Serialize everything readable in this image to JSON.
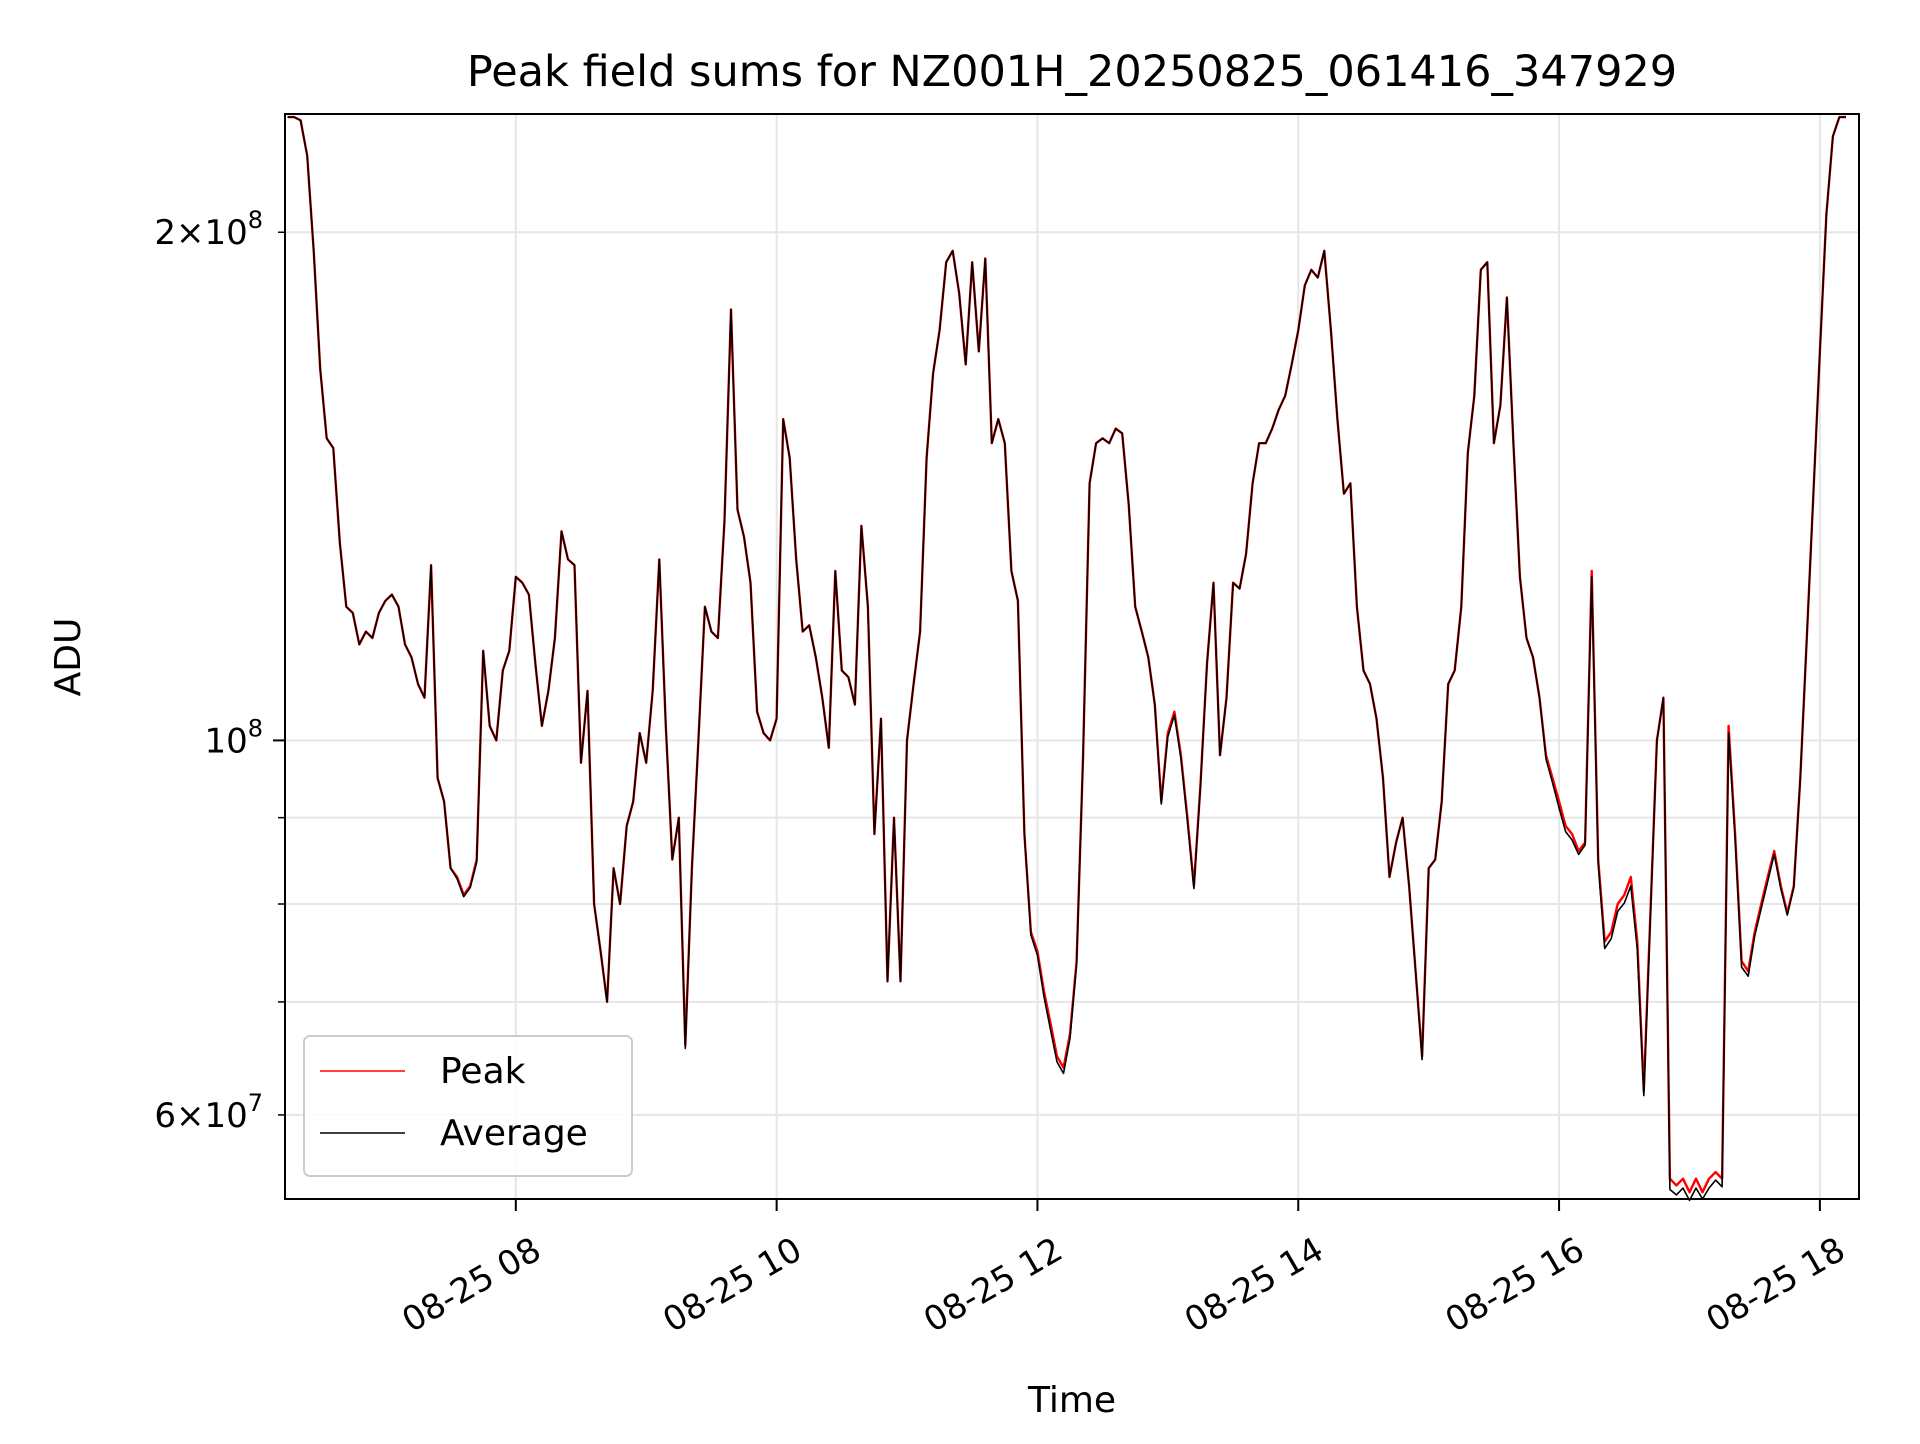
{
  "chart_data": {
    "type": "line",
    "title": "Peak field sums for NZ001H_20250825_061416_347929",
    "xlabel": "Time",
    "ylabel": "ADU",
    "x_unit": "hour of 2025-08-25",
    "xlim": [
      6.23,
      18.3
    ],
    "ylim": [
      53500000,
      235000000
    ],
    "yscale": "log",
    "grid": true,
    "legend_position": "lower-left",
    "x_tick_labels": [
      {
        "value": 8,
        "label": "08-25 08"
      },
      {
        "value": 10,
        "label": "08-25 10"
      },
      {
        "value": 12,
        "label": "08-25 12"
      },
      {
        "value": 14,
        "label": "08-25 14"
      },
      {
        "value": 16,
        "label": "08-25 16"
      },
      {
        "value": 18,
        "label": "08-25 18"
      }
    ],
    "y_major_ticks": [
      {
        "value": 100000000,
        "base": "10",
        "exp": "8"
      }
    ],
    "y_minor_ticks": [
      {
        "value": 60000000,
        "mant": "6",
        "exp": "7"
      },
      {
        "value": 70000000,
        "mant": "",
        "exp": ""
      },
      {
        "value": 80000000,
        "mant": "",
        "exp": ""
      },
      {
        "value": 90000000,
        "mant": "",
        "exp": ""
      },
      {
        "value": 200000000,
        "mant": "2",
        "exp": "8"
      }
    ],
    "x": [
      6.25,
      6.3,
      6.35,
      6.4,
      6.45,
      6.5,
      6.55,
      6.6,
      6.65,
      6.7,
      6.75,
      6.8,
      6.85,
      6.9,
      6.95,
      7.0,
      7.05,
      7.1,
      7.15,
      7.2,
      7.25,
      7.3,
      7.35,
      7.4,
      7.45,
      7.5,
      7.55,
      7.6,
      7.65,
      7.7,
      7.75,
      7.8,
      7.85,
      7.9,
      7.95,
      8.0,
      8.05,
      8.1,
      8.15,
      8.2,
      8.25,
      8.3,
      8.35,
      8.4,
      8.45,
      8.5,
      8.55,
      8.6,
      8.65,
      8.7,
      8.75,
      8.8,
      8.85,
      8.9,
      8.95,
      9.0,
      9.05,
      9.1,
      9.15,
      9.2,
      9.25,
      9.3,
      9.35,
      9.4,
      9.45,
      9.5,
      9.55,
      9.6,
      9.65,
      9.7,
      9.75,
      9.8,
      9.85,
      9.9,
      9.95,
      10.0,
      10.05,
      10.1,
      10.15,
      10.2,
      10.25,
      10.3,
      10.35,
      10.4,
      10.45,
      10.5,
      10.55,
      10.6,
      10.65,
      10.7,
      10.75,
      10.8,
      10.85,
      10.9,
      10.95,
      11.0,
      11.05,
      11.1,
      11.15,
      11.2,
      11.25,
      11.3,
      11.35,
      11.4,
      11.45,
      11.5,
      11.55,
      11.6,
      11.65,
      11.7,
      11.75,
      11.8,
      11.85,
      11.9,
      11.95,
      12.0,
      12.05,
      12.1,
      12.15,
      12.2,
      12.25,
      12.3,
      12.35,
      12.4,
      12.45,
      12.5,
      12.55,
      12.6,
      12.65,
      12.7,
      12.75,
      12.8,
      12.85,
      12.9,
      12.95,
      13.0,
      13.05,
      13.1,
      13.15,
      13.2,
      13.25,
      13.3,
      13.35,
      13.4,
      13.45,
      13.5,
      13.55,
      13.6,
      13.65,
      13.7,
      13.75,
      13.8,
      13.85,
      13.9,
      13.95,
      14.0,
      14.05,
      14.1,
      14.15,
      14.2,
      14.25,
      14.3,
      14.35,
      14.4,
      14.45,
      14.5,
      14.55,
      14.6,
      14.65,
      14.7,
      14.75,
      14.8,
      14.85,
      14.9,
      14.95,
      15.0,
      15.05,
      15.1,
      15.15,
      15.2,
      15.25,
      15.3,
      15.35,
      15.4,
      15.45,
      15.5,
      15.55,
      15.6,
      15.65,
      15.7,
      15.75,
      15.8,
      15.85,
      15.9,
      15.95,
      16.0,
      16.05,
      16.1,
      16.15,
      16.2,
      16.25,
      16.3,
      16.35,
      16.4,
      16.45,
      16.5,
      16.55,
      16.6,
      16.65,
      16.7,
      16.75,
      16.8,
      16.85,
      16.9,
      16.95,
      17.0,
      17.05,
      17.1,
      17.15,
      17.2,
      17.25,
      17.3,
      17.35,
      17.4,
      17.45,
      17.5,
      17.55,
      17.6,
      17.65,
      17.7,
      17.75,
      17.8,
      17.85,
      17.9,
      17.95,
      18.0,
      18.05,
      18.1,
      18.15,
      18.2
    ],
    "series": [
      {
        "name": "Peak",
        "color": "#ff0000",
        "values": [
          234000000,
          234000000,
          233000000,
          222000000,
          195000000,
          166000000,
          151000000,
          149000000,
          131000000,
          120000000,
          119000000,
          114000000,
          116000000,
          115000000,
          119000000,
          121000000,
          122000000,
          120000000,
          114000000,
          112000000,
          108000000,
          106000000,
          127000000,
          95000000,
          92000000,
          84000000,
          83000000,
          81000000,
          82000000,
          85000000,
          113000000,
          102000000,
          100000000,
          110000000,
          113000000,
          125000000,
          124000000,
          122000000,
          111000000,
          102000000,
          107000000,
          115000000,
          133000000,
          128000000,
          127000000,
          97000000,
          107000000,
          80000000,
          75000000,
          70000000,
          84000000,
          80000000,
          89000000,
          92000000,
          101000000,
          97000000,
          107000000,
          128000000,
          102000000,
          85000000,
          90000000,
          66000000,
          84000000,
          100000000,
          120000000,
          116000000,
          115000000,
          135000000,
          180000000,
          137000000,
          132000000,
          124000000,
          104000000,
          101000000,
          100000000,
          103000000,
          155000000,
          147000000,
          128000000,
          116000000,
          117000000,
          112000000,
          106000000,
          99000000,
          126000000,
          110000000,
          109000000,
          105000000,
          134000000,
          120000000,
          88000000,
          103000000,
          72000000,
          90000000,
          72000000,
          100000000,
          108000000,
          116000000,
          147000000,
          165000000,
          175000000,
          192000000,
          195000000,
          184000000,
          167000000,
          192000000,
          170000000,
          193000000,
          150000000,
          155000000,
          150000000,
          126000000,
          121000000,
          88000000,
          77000000,
          75000000,
          71000000,
          68000000,
          65000000,
          64000000,
          67000000,
          74000000,
          98000000,
          142000000,
          150000000,
          151000000,
          150000000,
          153000000,
          152000000,
          138000000,
          120000000,
          116000000,
          112000000,
          105000000,
          92000000,
          101000000,
          104000000,
          98000000,
          90000000,
          82000000,
          94000000,
          111000000,
          124000000,
          98000000,
          106000000,
          124000000,
          123000000,
          129000000,
          142000000,
          150000000,
          150000000,
          153000000,
          157000000,
          160000000,
          167000000,
          175000000,
          186000000,
          190000000,
          188000000,
          195000000,
          175000000,
          155000000,
          140000000,
          142000000,
          120000000,
          110000000,
          108000000,
          103000000,
          95000000,
          83000000,
          87000000,
          90000000,
          82000000,
          73000000,
          65000000,
          84000000,
          85000000,
          92000000,
          108000000,
          110000000,
          120000000,
          148000000,
          160000000,
          190000000,
          192000000,
          150000000,
          158000000,
          183000000,
          150000000,
          125000000,
          115000000,
          112000000,
          106000000,
          98000000,
          95000000,
          92000000,
          89000000,
          88000000,
          86000000,
          87000000,
          126000000,
          85000000,
          76000000,
          77000000,
          80000000,
          81000000,
          83000000,
          76000000,
          62000000,
          79000000,
          100000000,
          106000000,
          55000000,
          54500000,
          55000000,
          54000000,
          55000000,
          54000000,
          55000000,
          55500000,
          55000000,
          102000000,
          88000000,
          74000000,
          73000000,
          77000000,
          80000000,
          83000000,
          86000000,
          82000000,
          79000000,
          82000000,
          95000000,
          115000000,
          140000000,
          170000000,
          205000000,
          228000000,
          234000000,
          234000000
        ]
      },
      {
        "name": "Average",
        "color": "#000000",
        "values": [
          234000000,
          234000000,
          233000000,
          222000000,
          195000000,
          166000000,
          151000000,
          149000000,
          131000000,
          120000000,
          119000000,
          114000000,
          116000000,
          115000000,
          119000000,
          121000000,
          122000000,
          120000000,
          114000000,
          112000000,
          108000000,
          106000000,
          127000000,
          95000000,
          92000000,
          84000000,
          82800000,
          80800000,
          81800000,
          84700000,
          113000000,
          102000000,
          100000000,
          110000000,
          113000000,
          125000000,
          124000000,
          122000000,
          111000000,
          102000000,
          107000000,
          115000000,
          133000000,
          128000000,
          127000000,
          97000000,
          107000000,
          80000000,
          75000000,
          70000000,
          84000000,
          80000000,
          89000000,
          92000000,
          101000000,
          97000000,
          107000000,
          128000000,
          102000000,
          85000000,
          90000000,
          65700000,
          84000000,
          100000000,
          120000000,
          116000000,
          115000000,
          135000000,
          180000000,
          137000000,
          132000000,
          124000000,
          104000000,
          101000000,
          100000000,
          103000000,
          155000000,
          147000000,
          128000000,
          116000000,
          117000000,
          112000000,
          106000000,
          99000000,
          126000000,
          110000000,
          109000000,
          105000000,
          134000000,
          120000000,
          88000000,
          103000000,
          72000000,
          90000000,
          72000000,
          100000000,
          108000000,
          116000000,
          147000000,
          165000000,
          175000000,
          192000000,
          195000000,
          184000000,
          167000000,
          192000000,
          170000000,
          193000000,
          150000000,
          155000000,
          150000000,
          126000000,
          121000000,
          88000000,
          76700000,
          74600000,
          70500000,
          67400000,
          64500000,
          63500000,
          66600000,
          73700000,
          98000000,
          142000000,
          150000000,
          151000000,
          150000000,
          153000000,
          152000000,
          138000000,
          120000000,
          116000000,
          112000000,
          105000000,
          91700000,
          100500000,
          103500000,
          97600000,
          89600000,
          81700000,
          93800000,
          111000000,
          124000000,
          98000000,
          106000000,
          124000000,
          123000000,
          129000000,
          142000000,
          150000000,
          150000000,
          153000000,
          157000000,
          160000000,
          167000000,
          175000000,
          186000000,
          190000000,
          188000000,
          195000000,
          175000000,
          155000000,
          140000000,
          142000000,
          120000000,
          110000000,
          108000000,
          103000000,
          95000000,
          83000000,
          87000000,
          90000000,
          82000000,
          73000000,
          64700000,
          84000000,
          85000000,
          92000000,
          108000000,
          110000000,
          120000000,
          148000000,
          160000000,
          190000000,
          192000000,
          150000000,
          158000000,
          183000000,
          150000000,
          125000000,
          115000000,
          112000000,
          106000000,
          97500000,
          94400000,
          91200000,
          88300000,
          87300000,
          85600000,
          86700000,
          125000000,
          84500000,
          75300000,
          76300000,
          79200000,
          80100000,
          82000000,
          75200000,
          61600000,
          78500000,
          100000000,
          106000000,
          54200000,
          53800000,
          54300000,
          53400000,
          54300000,
          53500000,
          54300000,
          54900000,
          54400000,
          101000000,
          87500000,
          73400000,
          72500000,
          76600000,
          79500000,
          82500000,
          85600000,
          81700000,
          78800000,
          81800000,
          95000000,
          115000000,
          140000000,
          170000000,
          205000000,
          228000000,
          234000000,
          234000000
        ]
      }
    ]
  }
}
